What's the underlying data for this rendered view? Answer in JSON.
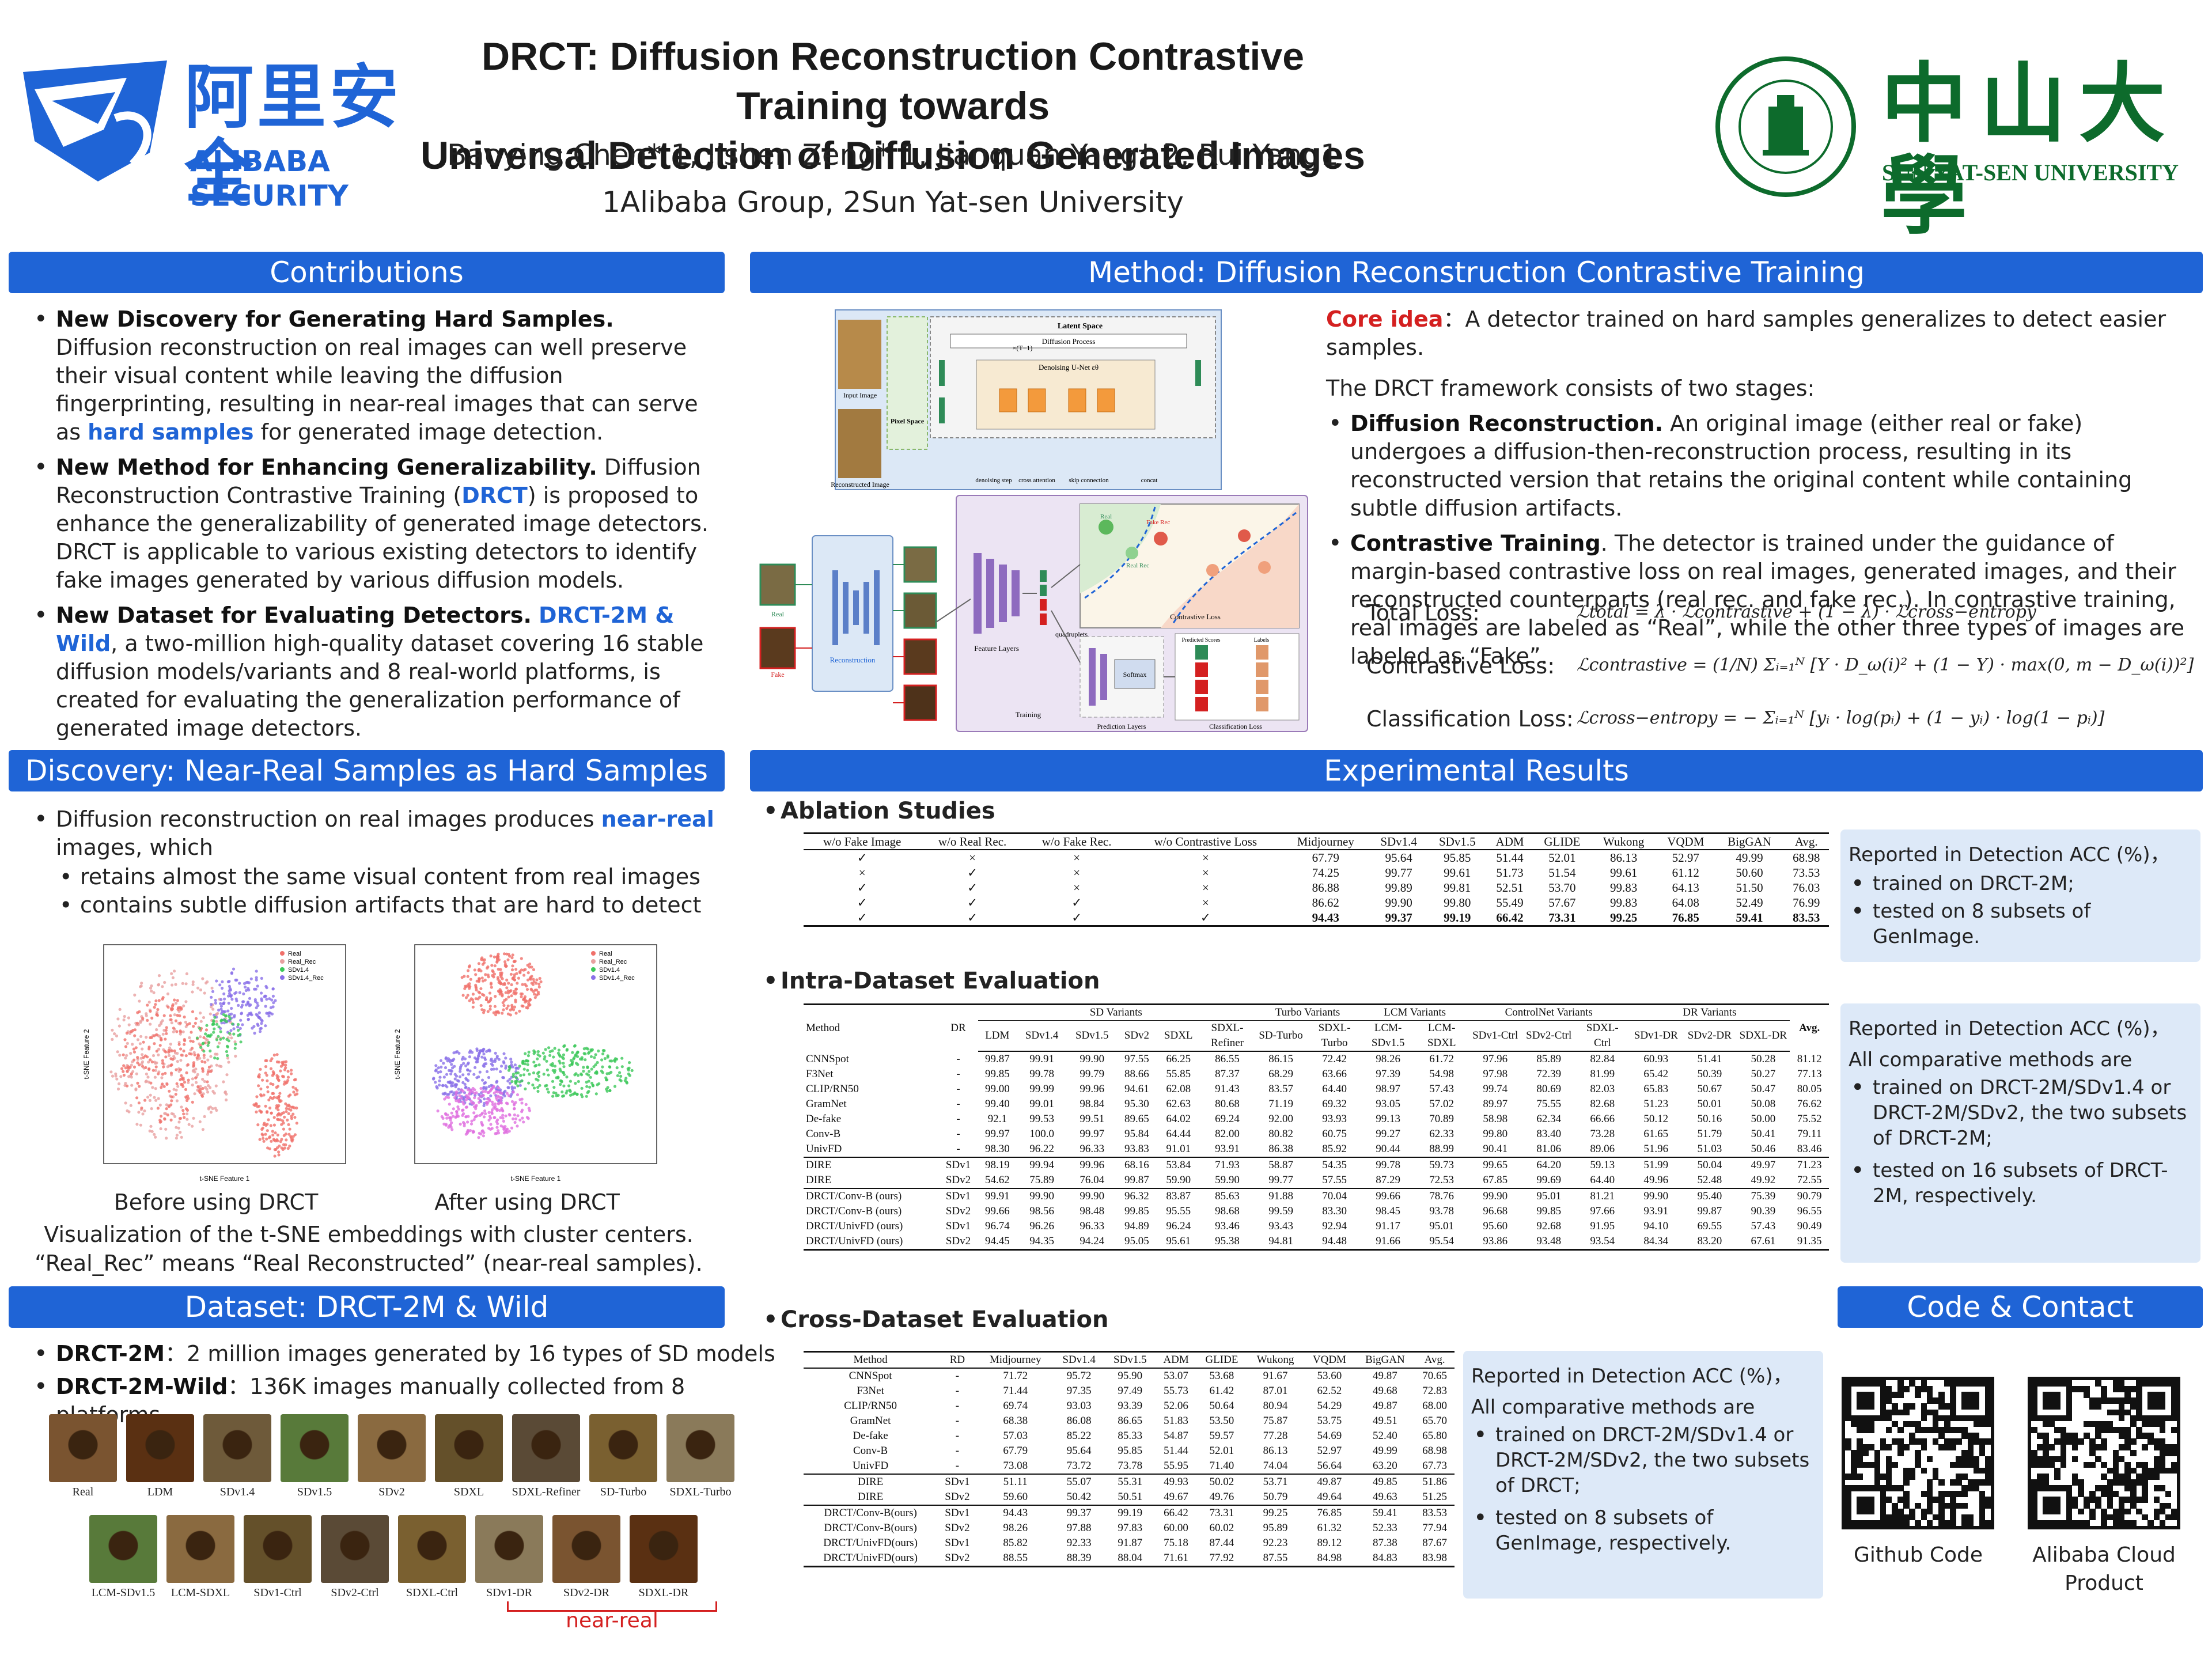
{
  "header": {
    "title_line1": "DRCT: Diffusion Reconstruction Contrastive Training towards",
    "title_line2": "Universal Detection of Diffusion Generated Images",
    "authors": "Baoying Chen* 1, Jishen Zeng* 1, Jianquan Yang† 2, Rui Yang1",
    "affiliations": "1Alibaba Group, 2Sun Yat-sen University",
    "logo_left_cn": "阿里安全",
    "logo_left_en": "ALIBABA SECURITY",
    "logo_right_cn": "中山大學",
    "logo_right_en": "SUN YAT-SEN UNIVERSITY"
  },
  "contributions": {
    "heading": "Contributions",
    "items": [
      {
        "bold": "New Discovery for Generating Hard Samples.",
        "text": " Diffusion reconstruction on real images can well preserve their visual content while leaving the diffusion fingerprinting, resulting in near-real images that can serve as ",
        "hl": "hard samples",
        "tail": " for generated image detection."
      },
      {
        "bold": "New Method for Enhancing Generalizability.",
        "text": " Diffusion Reconstruction Contrastive Training (",
        "hl": "DRCT",
        "tail": ") is proposed to enhance the generalizability of generated image detectors. DRCT is applicable to various existing detectors to identify fake images generated by various diffusion models."
      },
      {
        "bold": "New Dataset for Evaluating Detectors.",
        "text": " ",
        "hl": "DRCT-2M & Wild",
        "tail": ", a two-million high-quality dataset covering 16 stable diffusion models/variants and 8 real-world platforms, is created for evaluating the generalization performance of generated image detectors."
      }
    ]
  },
  "discovery": {
    "heading": "Discovery: Near-Real Samples as Hard Samples",
    "intro": "Diffusion reconstruction on real images produces ",
    "intro_hl": "near-real",
    "intro_tail": " images, which",
    "sub1": "retains almost the same visual content from real images",
    "sub2": "contains subtle diffusion artifacts that are hard to detect",
    "cap_before": "Before using DRCT",
    "cap_after": "After using DRCT",
    "caption1": "Visualization of the t-SNE embeddings with cluster centers.",
    "caption2": "“Real_Rec” means “Real Reconstructed” (near-real samples).",
    "legend": [
      "Real",
      "Real_Rec",
      "SDv1.4",
      "SDv1.4_Rec"
    ],
    "xlabel": "t-SNE Feature 1",
    "ylabel": "t-SNE Feature 2"
  },
  "dataset": {
    "heading": "Dataset: DRCT-2M & Wild",
    "line1_bold": "DRCT-2M",
    "line1": "：2 million images generated by 16 types of SD models",
    "line2_bold": "DRCT-2M-Wild",
    "line2": "：136K images manually collected from 8 platforms",
    "row1": [
      "Real",
      "LDM",
      "SDv1.4",
      "SDv1.5",
      "SDv2",
      "SDXL",
      "SDXL-Refiner",
      "SD-Turbo",
      "SDXL-Turbo"
    ],
    "row2": [
      "LCM-SDv1.5",
      "LCM-SDXL",
      "SDv1-Ctrl",
      "SDv2-Ctrl",
      "SDXL-Ctrl",
      "SDv1-DR",
      "SDv2-DR",
      "SDXL-DR"
    ],
    "near_real": "near-real"
  },
  "method": {
    "heading": "Method: Diffusion Reconstruction Contrastive Training",
    "core_label": "Core idea",
    "core_text": "：A detector trained on hard samples generalizes to detect easier samples.",
    "framework": "The DRCT framework consists of two stages:",
    "stage1_bold": "Diffusion Reconstruction.",
    "stage1": " An original image (either real or fake) undergoes a diffusion-then-reconstruction process, resulting in its reconstructed version that retains the original content while containing subtle diffusion artifacts.",
    "stage2_bold": "Contrastive Training",
    "stage2": ". The detector is trained under the guidance of margin-based contrastive loss on real images, generated images, and their reconstructed counterparts (real rec. and fake rec.). In contrastive training, real images are labeled as “Real”, while the other three types of images are labeled as “Fake”.",
    "loss_total_label": "Total Loss:",
    "loss_total": "ℒtotal = λ · ℒcontrastive + (1 − λ) · ℒcross−entropy",
    "loss_con_label": "Contrastive Loss:",
    "loss_con": "ℒcontrastive = (1/N) Σᵢ₌₁ᴺ [Y · D_ω(i)² + (1 − Y) · max(0, m − D_ω(i))²]",
    "loss_ce_label": "Classification Loss:",
    "loss_ce": "ℒcross−entropy = − Σᵢ₌₁ᴺ [yᵢ · log(pᵢ) + (1 − yᵢ) · log(1 − pᵢ)]",
    "diagram": {
      "latent_space": "Latent Space",
      "diffusion_process": "Diffusion Process",
      "denoising_unet": "Denoising U-Net εθ",
      "times": "×(T−1)",
      "input_image": "Input Image",
      "pixel_space": "Pixel Space",
      "reconstructed_image": "Reconstructed Image",
      "legend": [
        "denoising step",
        "cross attention",
        "skip connection",
        "concat"
      ],
      "reconstruction": "Reconstruction",
      "feature_layers": "Feature Layers",
      "quadruplets": "quadruplets",
      "training": "Training",
      "prediction_layers": "Prediction Layers",
      "softmax": "Softmax",
      "contrastive_loss": "Contrastive Loss",
      "classification_loss": "Classification Loss",
      "predicted_scores": "Predicted Scores",
      "labels": "Labels",
      "real": "Real",
      "fake": "Fake",
      "real_rec": "Real Rec",
      "fake_rec": "Fake Rec"
    }
  },
  "results": {
    "heading": "Experimental Results",
    "ablation_title": "Ablation Studies",
    "ablation": {
      "headers": [
        "w/o Fake Image",
        "w/o Real Rec.",
        "w/o Fake Rec.",
        "w/o Contrastive Loss",
        "Midjourney",
        "SDv1.4",
        "SDv1.5",
        "ADM",
        "GLIDE",
        "Wukong",
        "VQDM",
        "BigGAN",
        "Avg."
      ],
      "rows": [
        [
          "✓",
          "×",
          "×",
          "×",
          "67.79",
          "95.64",
          "95.85",
          "51.44",
          "52.01",
          "86.13",
          "52.97",
          "49.99",
          "68.98"
        ],
        [
          "×",
          "✓",
          "×",
          "×",
          "74.25",
          "99.77",
          "99.61",
          "51.73",
          "51.54",
          "99.61",
          "61.12",
          "50.60",
          "73.53"
        ],
        [
          "✓",
          "✓",
          "×",
          "×",
          "86.88",
          "99.89",
          "99.81",
          "52.51",
          "53.70",
          "99.83",
          "64.13",
          "51.50",
          "76.03"
        ],
        [
          "✓",
          "✓",
          "✓",
          "×",
          "86.62",
          "99.90",
          "99.80",
          "55.49",
          "57.67",
          "99.83",
          "64.08",
          "52.49",
          "76.99"
        ],
        [
          "✓",
          "✓",
          "✓",
          "✓",
          "94.43",
          "99.37",
          "99.19",
          "66.42",
          "73.31",
          "99.25",
          "76.85",
          "59.41",
          "83.53"
        ]
      ]
    },
    "ablation_note": {
      "l1": "Reported in Detection ACC (%)，",
      "b1": "trained on DRCT-2M;",
      "b2": "tested on 8 subsets of GenImage."
    },
    "intra_title": "Intra-Dataset Evaluation",
    "intra": {
      "groups": [
        "SD Variants",
        "Turbo Variants",
        "LCM Variants",
        "ControlNet Variants",
        "DR Variants"
      ],
      "method_h": "Method",
      "dr_h": "DR",
      "avg_h": "Avg.",
      "cols": [
        "LDM",
        "SDv1.4",
        "SDv1.5",
        "SDv2",
        "SDXL",
        "SDXL-Refiner",
        "SD-Turbo",
        "SDXL-Turbo",
        "LCM-SDv1.5",
        "LCM-SDXL",
        "SDv1-Ctrl",
        "SDv2-Ctrl",
        "SDXL-Ctrl",
        "SDv1-DR",
        "SDv2-DR",
        "SDXL-DR"
      ],
      "rows1": [
        [
          "CNNSpot",
          "-",
          "99.87",
          "99.91",
          "99.90",
          "97.55",
          "66.25",
          "86.55",
          "86.15",
          "72.42",
          "98.26",
          "61.72",
          "97.96",
          "85.89",
          "82.84",
          "60.93",
          "51.41",
          "50.28",
          "81.12"
        ],
        [
          "F3Net",
          "-",
          "99.85",
          "99.78",
          "99.79",
          "88.66",
          "55.85",
          "87.37",
          "68.29",
          "63.66",
          "97.39",
          "54.98",
          "97.98",
          "72.39",
          "81.99",
          "65.42",
          "50.39",
          "50.27",
          "77.13"
        ],
        [
          "CLIP/RN50",
          "-",
          "99.00",
          "99.99",
          "99.96",
          "94.61",
          "62.08",
          "91.43",
          "83.57",
          "64.40",
          "98.97",
          "57.43",
          "99.74",
          "80.69",
          "82.03",
          "65.83",
          "50.67",
          "50.47",
          "80.05"
        ],
        [
          "GramNet",
          "-",
          "99.40",
          "99.01",
          "98.84",
          "95.30",
          "62.63",
          "80.68",
          "71.19",
          "69.32",
          "93.05",
          "57.02",
          "89.97",
          "75.55",
          "82.68",
          "51.23",
          "50.01",
          "50.08",
          "76.62"
        ],
        [
          "De-fake",
          "-",
          "92.1",
          "99.53",
          "99.51",
          "89.65",
          "64.02",
          "69.24",
          "92.00",
          "93.93",
          "99.13",
          "70.89",
          "58.98",
          "62.34",
          "66.66",
          "50.12",
          "50.16",
          "50.00",
          "75.52"
        ],
        [
          "Conv-B",
          "-",
          "99.97",
          "100.0",
          "99.97",
          "95.84",
          "64.44",
          "82.00",
          "80.82",
          "60.75",
          "99.27",
          "62.33",
          "99.80",
          "83.40",
          "73.28",
          "61.65",
          "51.79",
          "50.41",
          "79.11"
        ],
        [
          "UnivFD",
          "-",
          "98.30",
          "96.22",
          "96.33",
          "93.83",
          "91.01",
          "93.91",
          "86.38",
          "85.92",
          "90.44",
          "88.99",
          "90.41",
          "81.06",
          "89.06",
          "51.96",
          "51.03",
          "50.46",
          "83.46"
        ]
      ],
      "rows2": [
        [
          "DIRE",
          "SDv1",
          "98.19",
          "99.94",
          "99.96",
          "68.16",
          "53.84",
          "71.93",
          "58.87",
          "54.35",
          "99.78",
          "59.73",
          "99.65",
          "64.20",
          "59.13",
          "51.99",
          "50.04",
          "49.97",
          "71.23"
        ],
        [
          "DIRE",
          "SDv2",
          "54.62",
          "75.89",
          "76.04",
          "99.87",
          "59.90",
          "59.90",
          "99.77",
          "57.55",
          "87.29",
          "72.53",
          "67.85",
          "99.69",
          "64.40",
          "49.96",
          "52.48",
          "49.92",
          "72.55"
        ]
      ],
      "rows3": [
        [
          "DRCT/Conv-B (ours)",
          "SDv1",
          "99.91",
          "99.90",
          "99.90",
          "96.32",
          "83.87",
          "85.63",
          "91.88",
          "70.04",
          "99.66",
          "78.76",
          "99.90",
          "95.01",
          "81.21",
          "99.90",
          "95.40",
          "75.39",
          "90.79"
        ],
        [
          "DRCT/Conv-B (ours)",
          "SDv2",
          "99.66",
          "98.56",
          "98.48",
          "99.85",
          "95.55",
          "98.68",
          "99.59",
          "83.30",
          "98.45",
          "93.78",
          "96.68",
          "99.85",
          "97.66",
          "93.91",
          "99.87",
          "90.39",
          "96.55"
        ],
        [
          "DRCT/UnivFD (ours)",
          "SDv1",
          "96.74",
          "96.26",
          "96.33",
          "94.89",
          "96.24",
          "93.46",
          "93.43",
          "92.94",
          "91.17",
          "95.01",
          "95.60",
          "92.68",
          "91.95",
          "94.10",
          "69.55",
          "57.43",
          "90.49"
        ],
        [
          "DRCT/UnivFD (ours)",
          "SDv2",
          "94.45",
          "94.35",
          "94.24",
          "95.05",
          "95.61",
          "95.38",
          "94.81",
          "94.48",
          "91.66",
          "95.54",
          "93.86",
          "93.48",
          "93.54",
          "84.34",
          "83.20",
          "67.61",
          "91.35"
        ]
      ]
    },
    "intra_note": {
      "l1": "Reported in Detection ACC (%)，",
      "l2": "All comparative methods are",
      "b1": "trained on DRCT-2M/SDv1.4 or DRCT-2M/SDv2, the two subsets of DRCT-2M;",
      "b2": "tested on 16 subsets of DRCT-2M, respectively."
    },
    "cross_title": "Cross-Dataset Evaluation",
    "cross": {
      "headers": [
        "Method",
        "RD",
        "Midjourney",
        "SDv1.4",
        "SDv1.5",
        "ADM",
        "GLIDE",
        "Wukong",
        "VQDM",
        "BigGAN",
        "Avg."
      ],
      "rows1": [
        [
          "CNNSpot",
          "-",
          "71.72",
          "95.72",
          "95.90",
          "53.07",
          "53.68",
          "91.67",
          "53.60",
          "49.87",
          "70.65"
        ],
        [
          "F3Net",
          "-",
          "71.44",
          "97.35",
          "97.49",
          "55.73",
          "61.42",
          "87.01",
          "62.52",
          "49.68",
          "72.83"
        ],
        [
          "CLIP/RN50",
          "-",
          "69.74",
          "93.03",
          "93.39",
          "52.06",
          "50.64",
          "80.94",
          "54.29",
          "49.87",
          "68.00"
        ],
        [
          "GramNet",
          "-",
          "68.38",
          "86.08",
          "86.65",
          "51.83",
          "53.50",
          "75.87",
          "53.75",
          "49.51",
          "65.70"
        ],
        [
          "De-fake",
          "-",
          "57.03",
          "85.22",
          "85.33",
          "54.87",
          "59.57",
          "77.28",
          "54.69",
          "52.40",
          "65.80"
        ],
        [
          "Conv-B",
          "-",
          "67.79",
          "95.64",
          "95.85",
          "51.44",
          "52.01",
          "86.13",
          "52.97",
          "49.99",
          "68.98"
        ],
        [
          "UnivFD",
          "-",
          "73.08",
          "73.72",
          "73.78",
          "55.95",
          "71.40",
          "74.04",
          "56.64",
          "63.20",
          "67.73"
        ]
      ],
      "rows2": [
        [
          "DIRE",
          "SDv1",
          "51.11",
          "55.07",
          "55.31",
          "49.93",
          "50.02",
          "53.71",
          "49.87",
          "49.85",
          "51.86"
        ],
        [
          "DIRE",
          "SDv2",
          "59.60",
          "50.42",
          "50.51",
          "49.67",
          "49.76",
          "50.79",
          "49.64",
          "49.63",
          "51.25"
        ]
      ],
      "rows3": [
        [
          "DRCT/Conv-B(ours)",
          "SDv1",
          "94.43",
          "99.37",
          "99.19",
          "66.42",
          "73.31",
          "99.25",
          "76.85",
          "59.41",
          "83.53"
        ],
        [
          "DRCT/Conv-B(ours)",
          "SDv2",
          "98.26",
          "97.88",
          "97.83",
          "60.00",
          "60.02",
          "95.89",
          "61.32",
          "52.33",
          "77.94"
        ],
        [
          "DRCT/UnivFD(ours)",
          "SDv1",
          "85.82",
          "92.33",
          "91.87",
          "75.18",
          "87.44",
          "92.23",
          "89.12",
          "87.38",
          "87.67"
        ],
        [
          "DRCT/UnivFD(ours)",
          "SDv2",
          "88.55",
          "88.39",
          "88.04",
          "71.61",
          "77.92",
          "87.55",
          "84.98",
          "84.83",
          "83.98"
        ]
      ]
    },
    "cross_note": {
      "l1": "Reported in Detection ACC (%)，",
      "l2": "All comparative methods are",
      "b1": "trained on DRCT-2M/SDv1.4 or DRCT-2M/SDv2, the two subsets of DRCT;",
      "b2": "tested on 8 subsets of GenImage, respectively."
    }
  },
  "contact": {
    "heading": "Code & Contact",
    "github": "Github Code",
    "alibaba": "Alibaba Cloud Product"
  }
}
